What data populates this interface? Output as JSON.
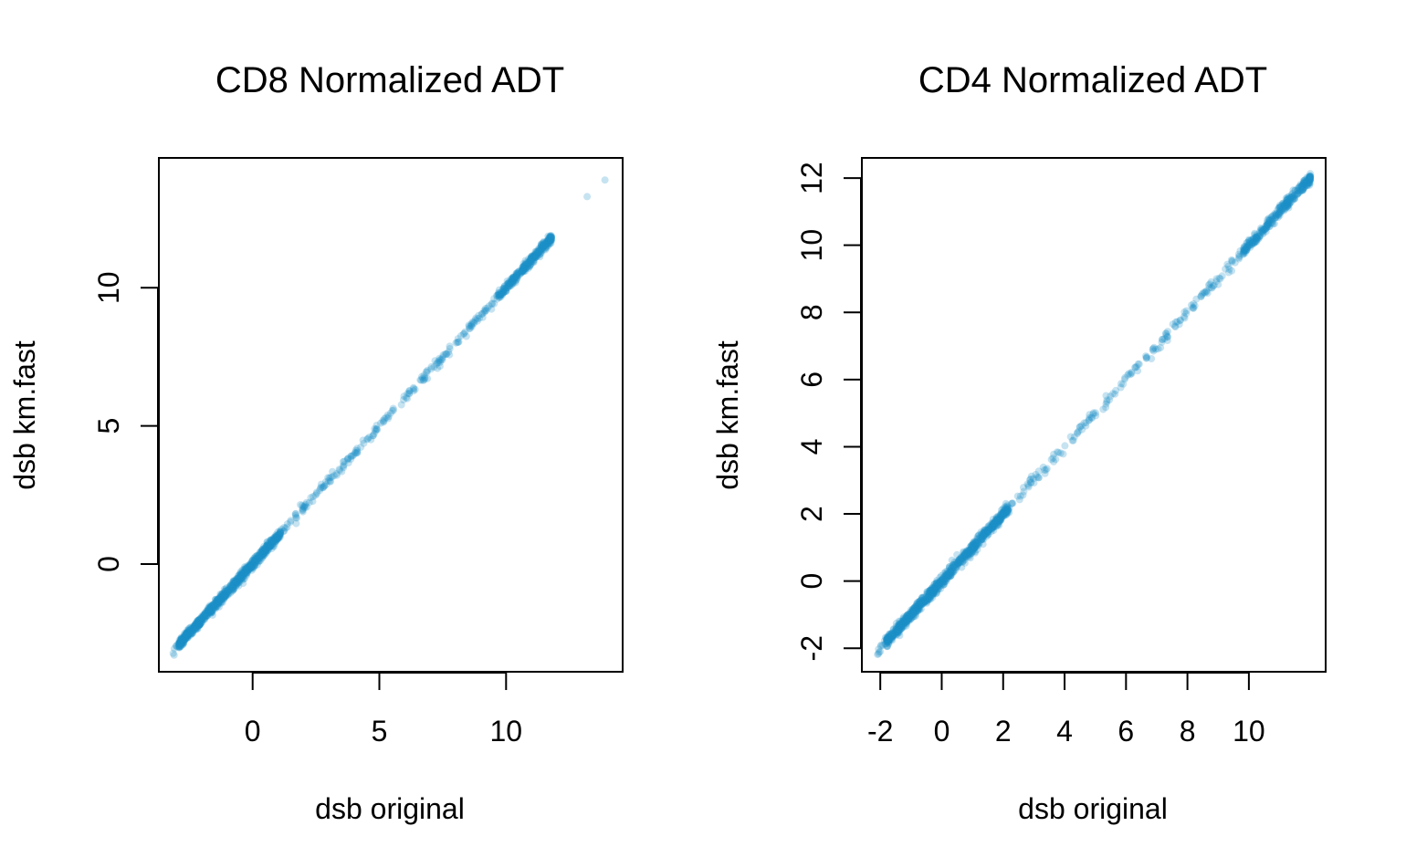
{
  "chart_data": [
    {
      "type": "scatter",
      "title": "CD8 Normalized ADT",
      "xlabel": "dsb original",
      "ylabel": "dsb km.fast",
      "xlim": [
        -3.7,
        14.6
      ],
      "ylim": [
        -3.9,
        14.7
      ],
      "xticks": [
        0,
        5,
        10
      ],
      "yticks": [
        0,
        5,
        10
      ],
      "grid": false,
      "point_color": "#1b8fc9",
      "main_trend": {
        "x_start": -3.2,
        "x_end": 11.8,
        "slope": 1.0,
        "intercept": 0.0
      },
      "outliers": [
        {
          "x": -3.1,
          "y": -3.3
        },
        {
          "x": 13.2,
          "y": 13.3
        },
        {
          "x": 13.9,
          "y": 13.9
        }
      ]
    },
    {
      "type": "scatter",
      "title": "CD4 Normalized ADT",
      "xlabel": "dsb original",
      "ylabel": "dsb km.fast",
      "xlim": [
        -2.6,
        12.5
      ],
      "ylim": [
        -2.7,
        12.6
      ],
      "xticks": [
        -2,
        0,
        2,
        4,
        6,
        8,
        10
      ],
      "yticks": [
        -2,
        0,
        2,
        4,
        6,
        8,
        10,
        12
      ],
      "grid": false,
      "point_color": "#1b8fc9",
      "main_trend": {
        "x_start": -2.1,
        "x_end": 12.0,
        "slope": 1.0,
        "intercept": 0.0
      },
      "outliers": [
        {
          "x": -2.0,
          "y": -2.1
        },
        {
          "x": 12.0,
          "y": 12.0
        }
      ]
    }
  ]
}
